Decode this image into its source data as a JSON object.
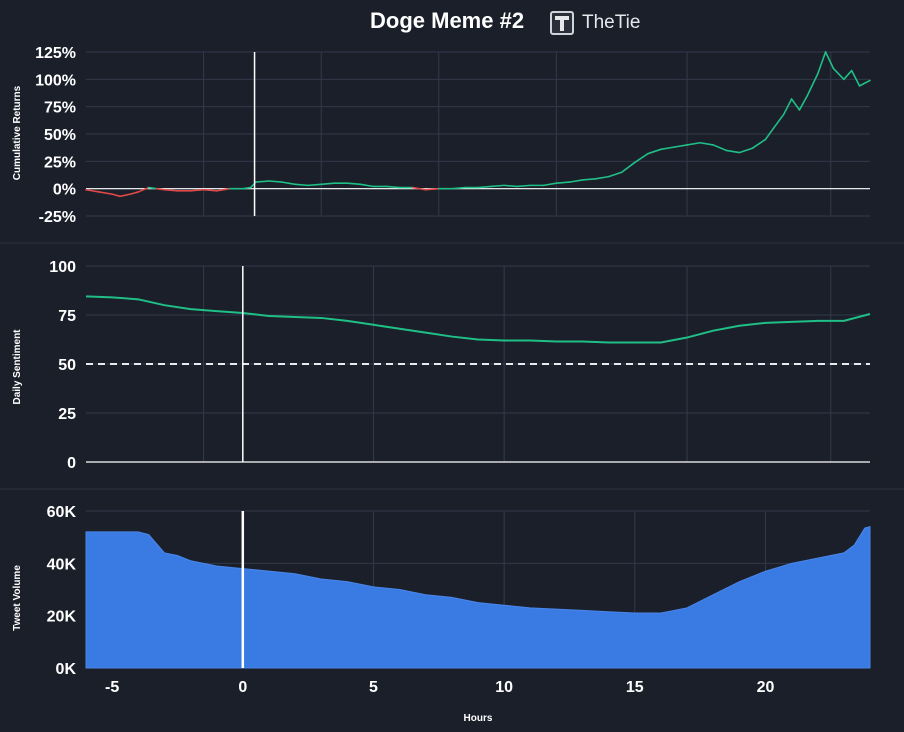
{
  "title": "Doge Meme #2",
  "brand": {
    "name": "TheTie",
    "icon": "thetie-logo-icon"
  },
  "colors": {
    "background": "#1b1f2a",
    "grid": "#323a4a",
    "returns_positive": "#1fbf86",
    "returns_negative": "#e04848",
    "sentiment": "#1fbf86",
    "volume": "#3a7be3",
    "marker": "#ffffff"
  },
  "x_axis": {
    "label": "Hours",
    "ticks": [
      "-5",
      "0",
      "5",
      "10",
      "15",
      "20"
    ]
  },
  "chart_data": [
    {
      "type": "line",
      "ylabel": "Cumulative Returns",
      "yticks": [
        "125%",
        "100%",
        "75%",
        "50%",
        "25%",
        "0%",
        "-25%"
      ],
      "ylim": [
        -25,
        125
      ],
      "xlim": [
        -6,
        24
      ],
      "marker_x": 0.45,
      "series": [
        {
          "x": [
            -6,
            -5.5,
            -5,
            -4.7,
            -4.3,
            -4,
            -3.6,
            -3.3,
            -3,
            -2.5,
            -2,
            -1.5,
            -1,
            -0.5,
            0,
            0.3,
            0.5,
            1,
            1.5,
            2,
            2.5,
            3,
            3.5,
            4,
            4.5,
            5,
            5.5,
            6,
            6.5,
            7,
            7.5,
            8,
            8.5,
            9,
            9.5,
            10,
            10.5,
            11,
            11.5,
            12,
            12.5,
            13,
            13.5,
            14,
            14.5,
            15,
            15.5,
            16,
            16.5,
            17,
            17.5,
            18,
            18.5,
            19,
            19.5,
            20,
            20.3,
            20.7,
            21,
            21.3,
            21.6,
            22,
            22.3,
            22.6,
            23,
            23.3,
            23.6,
            24
          ],
          "y": [
            -1,
            -3,
            -5,
            -7,
            -5,
            -3,
            1,
            0,
            -1,
            -2,
            -2,
            -1,
            -2,
            0,
            0,
            1,
            6,
            7,
            6,
            4,
            3,
            4,
            5,
            5,
            4,
            2,
            2,
            1,
            1,
            -1,
            0,
            0,
            1,
            1,
            2,
            3,
            2,
            3,
            3,
            5,
            6,
            8,
            9,
            11,
            15,
            24,
            32,
            36,
            38,
            40,
            42,
            40,
            35,
            33,
            37,
            45,
            55,
            68,
            82,
            72,
            85,
            105,
            125,
            110,
            100,
            108,
            94,
            99
          ]
        }
      ]
    },
    {
      "type": "line",
      "ylabel": "Daily Sentiment",
      "yticks": [
        "100",
        "75",
        "50",
        "25",
        "0"
      ],
      "ylim": [
        0,
        100
      ],
      "xlim": [
        -6,
        24
      ],
      "marker_x": 0,
      "threshold": 50,
      "series": [
        {
          "x": [
            -6,
            -5,
            -4,
            -3,
            -2,
            -1,
            0,
            1,
            2,
            3,
            4,
            5,
            6,
            7,
            8,
            9,
            10,
            11,
            12,
            13,
            14,
            15,
            16,
            17,
            18,
            19,
            20,
            21,
            22,
            23,
            24
          ],
          "y": [
            84.5,
            84,
            83,
            80,
            78,
            77,
            76,
            74.5,
            74,
            73.5,
            72,
            70,
            68,
            66,
            64,
            62.5,
            62,
            62,
            61.5,
            61.5,
            61,
            61,
            61,
            63.5,
            67,
            69.5,
            71,
            71.5,
            72,
            72,
            75.5
          ]
        }
      ]
    },
    {
      "type": "area",
      "ylabel": "Tweet Volume",
      "yticks": [
        "60K",
        "40K",
        "20K",
        "0K"
      ],
      "ylim": [
        0,
        60000
      ],
      "xlim": [
        -6,
        24
      ],
      "marker_x": 0,
      "series": [
        {
          "x": [
            -6,
            -5,
            -4,
            -3.6,
            -3,
            -2.5,
            -2,
            -1,
            0,
            1,
            2,
            3,
            4,
            5,
            6,
            7,
            8,
            9,
            10,
            11,
            12,
            13,
            14,
            15,
            16,
            16.5,
            17,
            18,
            19,
            20,
            21,
            22,
            23,
            23.4,
            23.8,
            24
          ],
          "y": [
            52000,
            52000,
            52000,
            51000,
            44000,
            43000,
            41000,
            39000,
            38000,
            37000,
            36000,
            34000,
            33000,
            31000,
            30000,
            28000,
            27000,
            25000,
            24000,
            23000,
            22500,
            22000,
            21500,
            21000,
            21000,
            22000,
            23000,
            28000,
            33000,
            37000,
            40000,
            42000,
            44000,
            47000,
            53500,
            54000
          ]
        }
      ]
    }
  ]
}
